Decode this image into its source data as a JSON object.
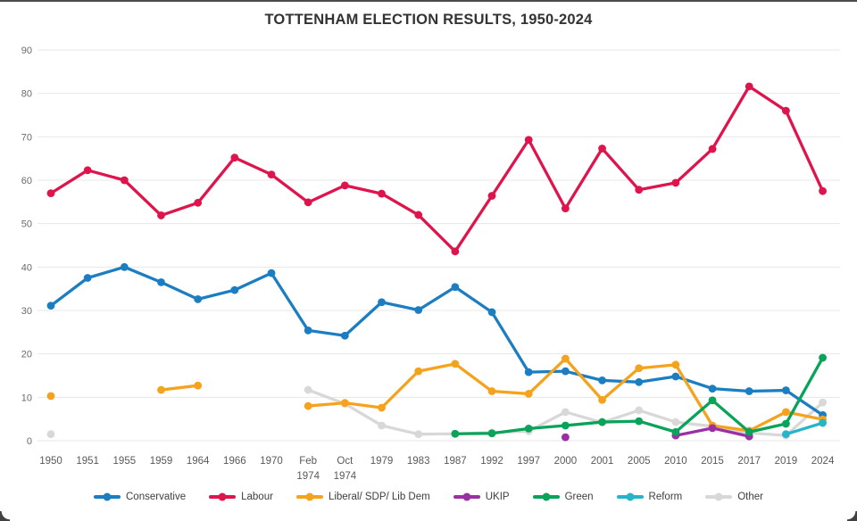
{
  "title": "TOTTENHAM ELECTION RESULTS, 1950-2024",
  "axes": {
    "y_tick_labels": [
      "0",
      "10",
      "20",
      "30",
      "40",
      "50",
      "60",
      "70",
      "80",
      "90"
    ],
    "grid_color": "#e7e7e7",
    "tick_label_color": "#6b6b6b"
  },
  "chart_data": {
    "type": "line",
    "title": "TOTTENHAM ELECTION RESULTS, 1950-2024",
    "xlabel": "",
    "ylabel": "",
    "ylim": [
      0,
      90
    ],
    "yticks": [
      0,
      10,
      20,
      30,
      40,
      50,
      60,
      70,
      80,
      90
    ],
    "grid": "horizontal",
    "legend_position": "bottom",
    "categories": [
      "1950",
      "1951",
      "1955",
      "1959",
      "1964",
      "1966",
      "1970",
      "Feb 1974",
      "Oct 1974",
      "1979",
      "1983",
      "1987",
      "1992",
      "1997",
      "2000",
      "2001",
      "2005",
      "2010",
      "2015",
      "2017",
      "2019",
      "2024"
    ],
    "series": [
      {
        "name": "Conservative",
        "color": "#1b7ec2",
        "values": [
          31.1,
          37.5,
          40,
          36.5,
          32.6,
          34.7,
          38.6,
          25.4,
          24.2,
          31.9,
          30.1,
          35.4,
          29.6,
          15.8,
          16,
          13.9,
          13.5,
          14.8,
          12,
          11.4,
          11.6,
          5.9
        ]
      },
      {
        "name": "Labour",
        "color": "#e0144c",
        "values": [
          57,
          62.3,
          60,
          51.9,
          54.8,
          65.2,
          61.3,
          54.9,
          58.8,
          56.9,
          52,
          43.6,
          56.4,
          69.3,
          53.5,
          67.3,
          57.8,
          59.4,
          67.2,
          81.6,
          76,
          57.5
        ]
      },
      {
        "name": "Liberal/ SDP/ Lib Dem",
        "color": "#f5a21c",
        "values": [
          10.3,
          null,
          null,
          11.7,
          12.7,
          null,
          null,
          8,
          8.7,
          7.6,
          16,
          17.7,
          11.4,
          10.8,
          18.9,
          9.4,
          16.7,
          17.5,
          3.5,
          2.3,
          6.6,
          4.9
        ]
      },
      {
        "name": "UKIP",
        "color": "#9b2fa5",
        "values": [
          null,
          null,
          null,
          null,
          null,
          null,
          null,
          null,
          null,
          null,
          null,
          null,
          null,
          null,
          0.8,
          null,
          null,
          1.2,
          2.9,
          1,
          null,
          null
        ]
      },
      {
        "name": "Green",
        "color": "#09a35a",
        "values": [
          null,
          null,
          null,
          null,
          null,
          null,
          null,
          null,
          null,
          null,
          null,
          1.6,
          1.7,
          2.8,
          3.5,
          4.3,
          4.5,
          2,
          9.3,
          2,
          3.9,
          19.1
        ]
      },
      {
        "name": "Reform",
        "color": "#25b4c8",
        "values": [
          null,
          null,
          null,
          null,
          null,
          null,
          null,
          null,
          null,
          null,
          null,
          null,
          null,
          null,
          null,
          null,
          null,
          null,
          null,
          null,
          1.5,
          4.1
        ]
      },
      {
        "name": "Other",
        "color": "#d8d8d8",
        "values": [
          1.5,
          null,
          null,
          null,
          null,
          null,
          null,
          11.7,
          8.5,
          3.5,
          1.5,
          1.6,
          1.9,
          2.2,
          6.6,
          4.2,
          7,
          4.3,
          3.3,
          1.8,
          1.2,
          8.8
        ]
      }
    ]
  }
}
